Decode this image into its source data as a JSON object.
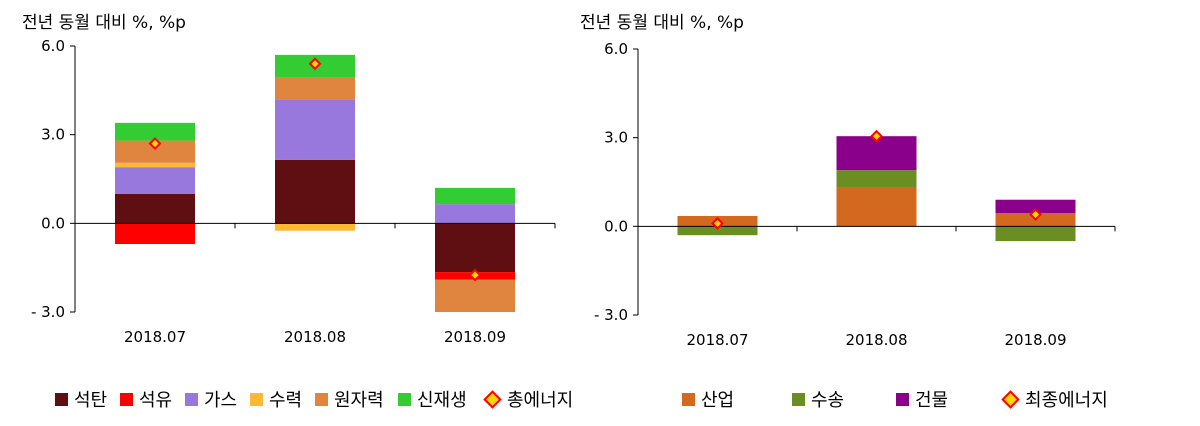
{
  "chart_data": [
    {
      "type": "bar",
      "stacked": true,
      "title": "",
      "unit_label": "전년 동월 대비 %, %p",
      "categories": [
        "2018.07",
        "2018.08",
        "2018.09"
      ],
      "ylim": [
        -3.0,
        6.0
      ],
      "yticks": [
        "6.0",
        "3.0",
        "0.0",
        "- 3.0"
      ],
      "ytick_values": [
        6.0,
        3.0,
        0.0,
        -3.0
      ],
      "grid": false,
      "legend_position": "bottom",
      "series": [
        {
          "name": "석탄",
          "color": "#5f0f11",
          "values": [
            1.0,
            2.15,
            -1.65
          ]
        },
        {
          "name": "석유",
          "color": "#ff0000",
          "values": [
            -0.7,
            0.0,
            -0.25
          ]
        },
        {
          "name": "가스",
          "color": "#9878dc",
          "values": [
            0.9,
            2.05,
            0.65
          ]
        },
        {
          "name": "수력",
          "color": "#ffb833",
          "values": [
            0.15,
            -0.25,
            0.0
          ]
        },
        {
          "name": "원자력",
          "color": "#e0853f",
          "values": [
            0.75,
            0.75,
            -1.1
          ]
        },
        {
          "name": "신재생",
          "color": "#33cc33",
          "values": [
            0.6,
            0.75,
            0.55
          ]
        }
      ],
      "line_series": {
        "name": "총에너지",
        "values": [
          2.7,
          5.4,
          -1.75
        ],
        "stroke": "#ff0000",
        "fill": "#ffd700"
      }
    },
    {
      "type": "bar",
      "stacked": true,
      "title": "",
      "unit_label": "전년 동월 대비 %, %p",
      "categories": [
        "2018.07",
        "2018.08",
        "2018.09"
      ],
      "ylim": [
        -3.0,
        6.0
      ],
      "yticks": [
        "6.0",
        "3.0",
        "0.0",
        "- 3.0"
      ],
      "ytick_values": [
        6.0,
        3.0,
        0.0,
        -3.0
      ],
      "grid": false,
      "legend_position": "bottom",
      "series": [
        {
          "name": "산업",
          "color": "#d2691e",
          "values": [
            0.35,
            1.3,
            0.45
          ]
        },
        {
          "name": "수송",
          "color": "#6b8e23",
          "values": [
            -0.3,
            0.6,
            -0.5
          ]
        },
        {
          "name": "건물",
          "color": "#8b008b",
          "values": [
            0.0,
            1.15,
            0.45
          ]
        }
      ],
      "line_series": {
        "name": "최종에너지",
        "values": [
          0.1,
          3.05,
          0.4
        ],
        "stroke": "#ff0000",
        "fill": "#ffd700"
      }
    }
  ]
}
